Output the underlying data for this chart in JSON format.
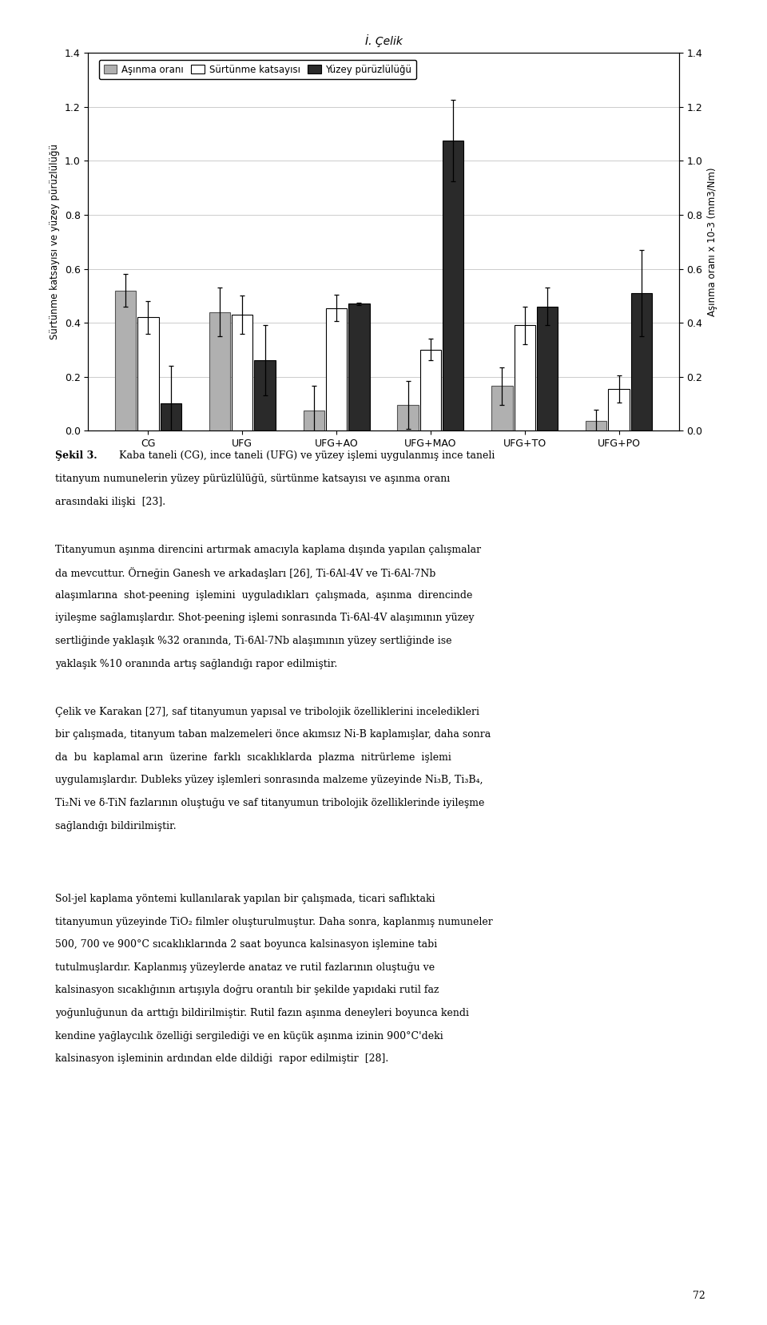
{
  "header": "İ. Çelik",
  "categories": [
    "CG",
    "UFG",
    "UFG+AO",
    "UFG+MAO",
    "UFG+TO",
    "UFG+PO"
  ],
  "bar_labels": [
    "Aşınma oranı",
    "Sürtünme katsayısı",
    "Yüzey pürüzlülüğü"
  ],
  "bar_colors": [
    "#b0b0b0",
    "#ffffff",
    "#2a2a2a"
  ],
  "bar_hatches": [
    "",
    "===",
    ""
  ],
  "bar_edgecolors": [
    "#555555",
    "#000000",
    "#000000"
  ],
  "values_asinma": [
    0.52,
    0.44,
    0.075,
    0.095,
    0.165,
    0.037
  ],
  "values_surtunme": [
    0.42,
    0.43,
    0.455,
    0.3,
    0.39,
    0.155
  ],
  "values_yuzey": [
    0.1,
    0.26,
    0.47,
    1.075,
    0.46,
    0.51
  ],
  "errors_asinma": [
    0.06,
    0.09,
    0.09,
    0.09,
    0.07,
    0.04
  ],
  "errors_surtunme": [
    0.06,
    0.07,
    0.05,
    0.04,
    0.07,
    0.05
  ],
  "errors_yuzey": [
    0.14,
    0.13,
    0.005,
    0.15,
    0.07,
    0.16
  ],
  "ylabel_left": "Sürtünme katsayısı ve yüzey pürüzlülüğü",
  "ylabel_right": "Aşınma oranı x 10-3 (mm3/Nm)",
  "ylim": [
    0,
    1.4
  ],
  "yticks": [
    0,
    0.2,
    0.4,
    0.6,
    0.8,
    1.0,
    1.2,
    1.4
  ],
  "caption_bold": "Şekil 3.",
  "caption_rest": " Kaba taneli (CG), ince taneli (UFG) ve yüzey işlemi uygulanmış ince taneli titanyum numunelerin yüzey pürüzlülüğü, sürtünme katsayısı ve aşınma oranı arasındaki ilişki  [23].",
  "para1_line1": "Titanyumun aşınma direncini artırmak amacıyla kaplama dışında yapılan çalışmalar",
  "para1_line2": "da mevcuttur. Örneğin Ganesh ve arkadaşları [26], Ti-6Al-4V ve Ti-6Al-7Nb",
  "para1_line3": "alaşımlarına shot-peening işlemini uyguladıkları çalışmada, aşınma direncinde",
  "para1_line4": "iyileşme sağlamışlardır. Shot-peening işlemi sonrasında Ti-6Al-4V alaşımının yüzey",
  "para1_line5": "sertliğinde yaklaşık %32 oranında, Ti-6Al-7Nb alaşımının yüzey sertliğinde ise",
  "para1_line6": "yaklaşık %10 oranında artış sağlandığı rapor edilmiştir.",
  "para2_line1": "Çelik ve Karakan [27], saf titanyumun yapısal ve tribolojik özelliklerini inceledikleri",
  "para2_line2": "bir çalışmada, titanyum taban malzemeleri önce akımsız Ni-B kaplamışlar, daha sonra",
  "para2_line3": "da  bu  kaplamal arın  üzerine  farklı  sıcaklıklarda  plazma  nitrürleme  işlemi",
  "para2_line4": "uygulamışlardır. Dubleks yüzey işlemleri sonrasında malzeme yüzeyinde Ni₃B, Ti₃B₄,",
  "para2_line5": "Ti₂Ni ve δ-TiN fazlarının oluştuğu ve saf titanyumun tribolojik özelliklerinde iyileşme",
  "para2_line6": "sağlandığı bildirilmiştir.",
  "para3_line1": "Sol-jel kaplama yöntemi kullanılarak yapılan bir çalışmada, ticari saflıktaki",
  "para3_line2": "titanyumun yüzeyinde TiO₂ filmler oluşturulmuştur. Daha sonra, kaplanmış numuneler",
  "para3_line3": "500, 700 ve 900°C sıcaklıklarında 2 saat boyunca kalsinasyon işlemine tabi",
  "para3_line4": "tutulmuşlardır. Kaplanmış yüzeylerde anataz ve rutil fazlarının oluştuğu ve",
  "para3_line5": "kalsinasyon sıcaklığının artışıyla doğru orantılı bir şekilde yapıdaki rutil faz",
  "para3_line6": "yoğunluğunun da arttığı bildirilmiştir. Rutil fazın aşınma deneyleri boyunca kendi",
  "para3_line7": "kendine yağlaycılık özelliği sergilediği ve en küçük aşınma izinin 900°C'deki",
  "para3_line8": "kalsinasyon işleminin ardından elde dildiği  rapor edilmiştir  [28].",
  "page_number": "72",
  "figure_width": 9.6,
  "figure_height": 16.59
}
